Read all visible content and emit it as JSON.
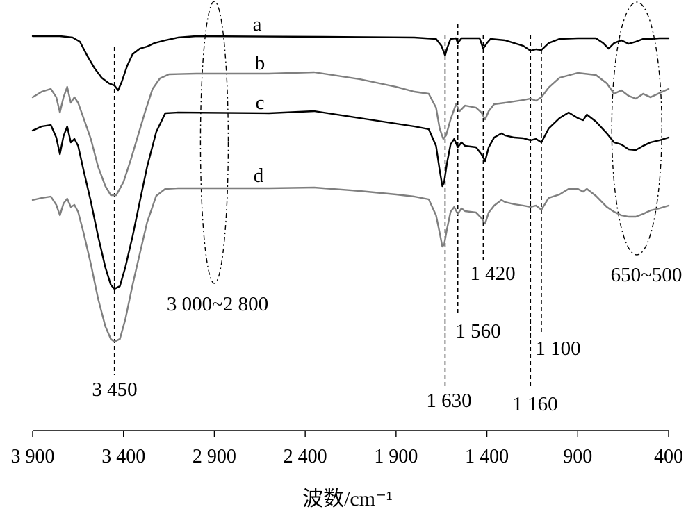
{
  "chart_data": {
    "type": "line",
    "title": "",
    "xlabel": "波数/cm⁻¹",
    "ylabel": "",
    "xlim": [
      3900,
      400
    ],
    "x_reversed": true,
    "grid": false,
    "x_ticks": [
      3900,
      3400,
      2900,
      2400,
      1900,
      1400,
      900,
      400
    ],
    "x_tick_labels": [
      "3 900",
      "3 400",
      "2 900",
      "2 400",
      "1 900",
      "1 400",
      "900",
      "400"
    ],
    "series": [
      {
        "name": "a",
        "color": "#000000",
        "points": [
          [
            3900,
            52
          ],
          [
            3750,
            52
          ],
          [
            3680,
            54
          ],
          [
            3640,
            60
          ],
          [
            3600,
            80
          ],
          [
            3560,
            98
          ],
          [
            3520,
            112
          ],
          [
            3480,
            120
          ],
          [
            3450,
            123
          ],
          [
            3430,
            130
          ],
          [
            3410,
            118
          ],
          [
            3380,
            95
          ],
          [
            3350,
            78
          ],
          [
            3310,
            70
          ],
          [
            3270,
            67
          ],
          [
            3230,
            62
          ],
          [
            3170,
            58
          ],
          [
            3100,
            54
          ],
          [
            3000,
            52
          ],
          [
            2300,
            53
          ],
          [
            1800,
            54
          ],
          [
            1680,
            56
          ],
          [
            1650,
            66
          ],
          [
            1630,
            80
          ],
          [
            1620,
            70
          ],
          [
            1600,
            56
          ],
          [
            1570,
            55
          ],
          [
            1560,
            62
          ],
          [
            1540,
            55
          ],
          [
            1440,
            55
          ],
          [
            1420,
            70
          ],
          [
            1400,
            62
          ],
          [
            1380,
            56
          ],
          [
            1300,
            58
          ],
          [
            1200,
            66
          ],
          [
            1160,
            73
          ],
          [
            1130,
            71
          ],
          [
            1100,
            72
          ],
          [
            1060,
            62
          ],
          [
            1000,
            56
          ],
          [
            900,
            55
          ],
          [
            800,
            55
          ],
          [
            760,
            62
          ],
          [
            730,
            70
          ],
          [
            700,
            62
          ],
          [
            660,
            58
          ],
          [
            620,
            63
          ],
          [
            580,
            60
          ],
          [
            540,
            56
          ],
          [
            500,
            56
          ],
          [
            450,
            55
          ],
          [
            400,
            55
          ]
        ]
      },
      {
        "name": "b",
        "color": "#7f7f7f",
        "points": [
          [
            3900,
            140
          ],
          [
            3850,
            132
          ],
          [
            3800,
            128
          ],
          [
            3770,
            140
          ],
          [
            3750,
            162
          ],
          [
            3730,
            140
          ],
          [
            3710,
            125
          ],
          [
            3690,
            148
          ],
          [
            3670,
            140
          ],
          [
            3650,
            148
          ],
          [
            3620,
            170
          ],
          [
            3580,
            200
          ],
          [
            3540,
            240
          ],
          [
            3500,
            268
          ],
          [
            3470,
            281
          ],
          [
            3440,
            281
          ],
          [
            3400,
            262
          ],
          [
            3360,
            230
          ],
          [
            3320,
            195
          ],
          [
            3280,
            160
          ],
          [
            3240,
            128
          ],
          [
            3200,
            113
          ],
          [
            3150,
            107
          ],
          [
            3000,
            106
          ],
          [
            2600,
            106
          ],
          [
            2350,
            104
          ],
          [
            2100,
            114
          ],
          [
            1900,
            125
          ],
          [
            1800,
            132
          ],
          [
            1720,
            135
          ],
          [
            1680,
            155
          ],
          [
            1660,
            185
          ],
          [
            1640,
            200
          ],
          [
            1625,
            195
          ],
          [
            1600,
            172
          ],
          [
            1570,
            150
          ],
          [
            1550,
            160
          ],
          [
            1520,
            152
          ],
          [
            1460,
            155
          ],
          [
            1430,
            162
          ],
          [
            1410,
            172
          ],
          [
            1390,
            160
          ],
          [
            1360,
            150
          ],
          [
            1300,
            148
          ],
          [
            1200,
            144
          ],
          [
            1160,
            142
          ],
          [
            1130,
            145
          ],
          [
            1100,
            140
          ],
          [
            1060,
            126
          ],
          [
            1000,
            112
          ],
          [
            900,
            105
          ],
          [
            800,
            108
          ],
          [
            740,
            120
          ],
          [
            700,
            135
          ],
          [
            660,
            130
          ],
          [
            620,
            138
          ],
          [
            580,
            142
          ],
          [
            540,
            135
          ],
          [
            500,
            140
          ],
          [
            450,
            134
          ],
          [
            400,
            128
          ]
        ]
      },
      {
        "name": "c",
        "color": "#000000",
        "points": [
          [
            3900,
            188
          ],
          [
            3850,
            182
          ],
          [
            3800,
            180
          ],
          [
            3770,
            198
          ],
          [
            3750,
            222
          ],
          [
            3730,
            196
          ],
          [
            3710,
            182
          ],
          [
            3690,
            205
          ],
          [
            3670,
            200
          ],
          [
            3650,
            210
          ],
          [
            3620,
            245
          ],
          [
            3580,
            290
          ],
          [
            3540,
            340
          ],
          [
            3500,
            385
          ],
          [
            3470,
            410
          ],
          [
            3450,
            416
          ],
          [
            3420,
            412
          ],
          [
            3390,
            385
          ],
          [
            3350,
            340
          ],
          [
            3310,
            290
          ],
          [
            3270,
            240
          ],
          [
            3220,
            190
          ],
          [
            3170,
            163
          ],
          [
            3100,
            162
          ],
          [
            2600,
            163
          ],
          [
            2350,
            160
          ],
          [
            2100,
            170
          ],
          [
            1900,
            178
          ],
          [
            1800,
            182
          ],
          [
            1720,
            186
          ],
          [
            1680,
            210
          ],
          [
            1660,
            245
          ],
          [
            1645,
            268
          ],
          [
            1635,
            262
          ],
          [
            1620,
            235
          ],
          [
            1600,
            208
          ],
          [
            1580,
            200
          ],
          [
            1560,
            212
          ],
          [
            1540,
            205
          ],
          [
            1520,
            210
          ],
          [
            1460,
            212
          ],
          [
            1430,
            222
          ],
          [
            1410,
            232
          ],
          [
            1390,
            212
          ],
          [
            1360,
            198
          ],
          [
            1320,
            192
          ],
          [
            1300,
            195
          ],
          [
            1250,
            198
          ],
          [
            1200,
            199
          ],
          [
            1160,
            202
          ],
          [
            1130,
            200
          ],
          [
            1100,
            205
          ],
          [
            1060,
            185
          ],
          [
            1000,
            170
          ],
          [
            950,
            162
          ],
          [
            900,
            170
          ],
          [
            870,
            173
          ],
          [
            850,
            165
          ],
          [
            800,
            175
          ],
          [
            740,
            192
          ],
          [
            700,
            205
          ],
          [
            660,
            208
          ],
          [
            620,
            215
          ],
          [
            580,
            216
          ],
          [
            540,
            210
          ],
          [
            500,
            205
          ],
          [
            450,
            202
          ],
          [
            400,
            198
          ]
        ]
      },
      {
        "name": "d",
        "color": "#7f7f7f",
        "points": [
          [
            3900,
            288
          ],
          [
            3850,
            285
          ],
          [
            3800,
            283
          ],
          [
            3770,
            295
          ],
          [
            3750,
            310
          ],
          [
            3730,
            293
          ],
          [
            3710,
            286
          ],
          [
            3690,
            298
          ],
          [
            3670,
            295
          ],
          [
            3650,
            305
          ],
          [
            3620,
            335
          ],
          [
            3580,
            380
          ],
          [
            3540,
            430
          ],
          [
            3500,
            470
          ],
          [
            3470,
            488
          ],
          [
            3450,
            492
          ],
          [
            3420,
            488
          ],
          [
            3390,
            460
          ],
          [
            3350,
            410
          ],
          [
            3310,
            365
          ],
          [
            3270,
            320
          ],
          [
            3220,
            282
          ],
          [
            3170,
            272
          ],
          [
            3100,
            271
          ],
          [
            2600,
            271
          ],
          [
            2350,
            270
          ],
          [
            2100,
            275
          ],
          [
            1900,
            280
          ],
          [
            1800,
            283
          ],
          [
            1720,
            287
          ],
          [
            1680,
            310
          ],
          [
            1660,
            335
          ],
          [
            1645,
            355
          ],
          [
            1635,
            352
          ],
          [
            1620,
            330
          ],
          [
            1600,
            305
          ],
          [
            1580,
            298
          ],
          [
            1560,
            308
          ],
          [
            1540,
            300
          ],
          [
            1520,
            304
          ],
          [
            1460,
            306
          ],
          [
            1430,
            314
          ],
          [
            1410,
            322
          ],
          [
            1390,
            306
          ],
          [
            1360,
            296
          ],
          [
            1320,
            288
          ],
          [
            1300,
            291
          ],
          [
            1250,
            294
          ],
          [
            1200,
            296
          ],
          [
            1160,
            298
          ],
          [
            1130,
            296
          ],
          [
            1100,
            302
          ],
          [
            1060,
            285
          ],
          [
            1000,
            280
          ],
          [
            950,
            272
          ],
          [
            900,
            272
          ],
          [
            870,
            276
          ],
          [
            850,
            272
          ],
          [
            800,
            282
          ],
          [
            740,
            298
          ],
          [
            700,
            305
          ],
          [
            660,
            310
          ],
          [
            620,
            312
          ],
          [
            580,
            312
          ],
          [
            540,
            308
          ],
          [
            500,
            303
          ],
          [
            450,
            300
          ],
          [
            400,
            296
          ]
        ]
      }
    ],
    "annotations": [
      {
        "text": "3 450",
        "x": 3450
      },
      {
        "text": "3 000~2 800",
        "x": 2900
      },
      {
        "text": "1 630",
        "x": 1630
      },
      {
        "text": "1 560",
        "x": 1560
      },
      {
        "text": "1 420",
        "x": 1420
      },
      {
        "text": "1 160",
        "x": 1160
      },
      {
        "text": "1 100",
        "x": 1100
      },
      {
        "text": "650~500",
        "x": 575
      }
    ],
    "regions": [
      {
        "label": "3 000~2 800",
        "x_range": [
          3000,
          2800
        ]
      },
      {
        "label": "650~500",
        "x_range": [
          650,
          500
        ]
      }
    ]
  }
}
